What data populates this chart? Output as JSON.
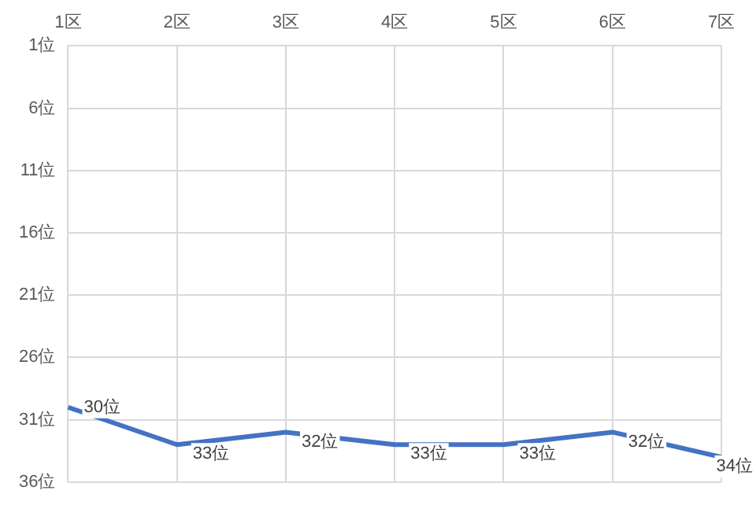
{
  "chart_data": {
    "type": "line",
    "categories": [
      "1区",
      "2区",
      "3区",
      "4区",
      "5区",
      "6区",
      "7区"
    ],
    "series": [
      {
        "color": "#4472c4",
        "values": [
          30,
          33,
          32,
          33,
          33,
          32,
          34
        ],
        "value_labels": [
          "30位",
          "33位",
          "32位",
          "33位",
          "33位",
          "32位",
          "34位"
        ]
      }
    ],
    "ylim": [
      36,
      1
    ],
    "yticks": [
      {
        "value": 1,
        "label": "1位"
      },
      {
        "value": 6,
        "label": "6位"
      },
      {
        "value": 11,
        "label": "11位"
      },
      {
        "value": 16,
        "label": "16位"
      },
      {
        "value": 21,
        "label": "21位"
      },
      {
        "value": 26,
        "label": "26位"
      },
      {
        "value": 31,
        "label": "31位"
      },
      {
        "value": 36,
        "label": "36位"
      }
    ],
    "grid": true,
    "marker": "none",
    "line_style": "solid"
  }
}
